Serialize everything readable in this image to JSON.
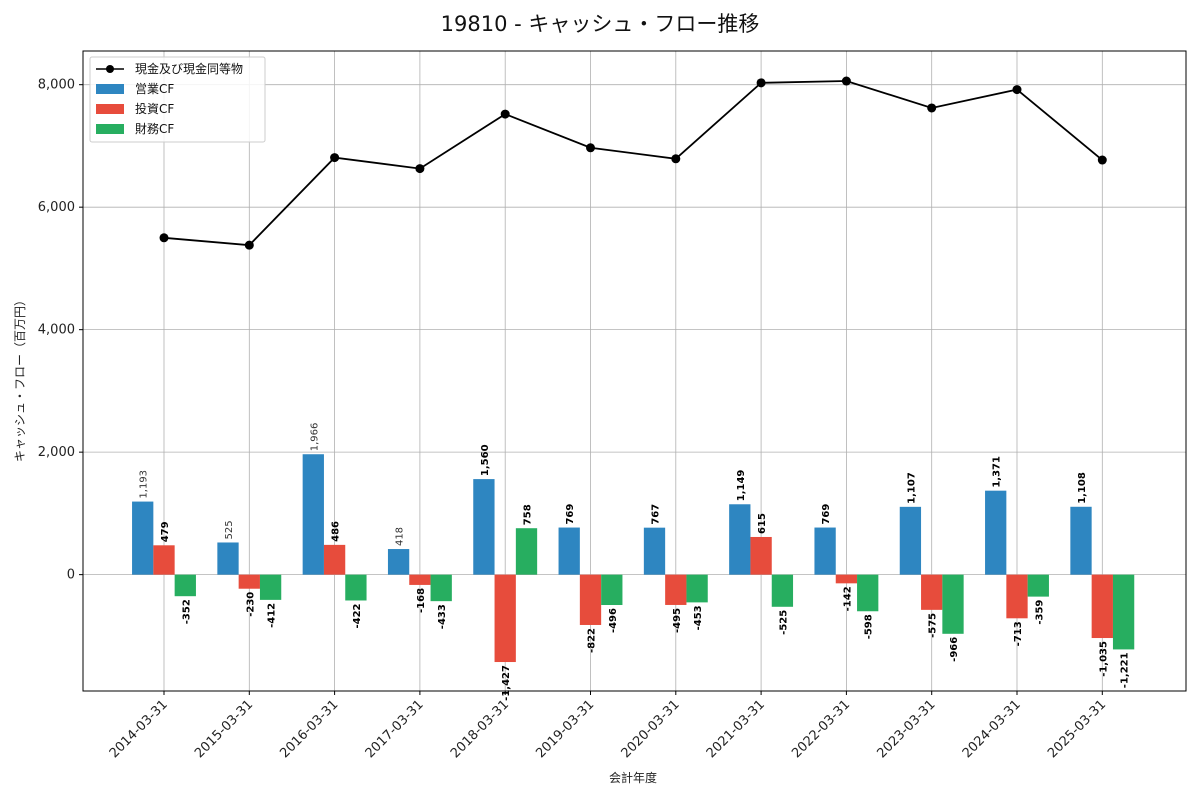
{
  "chart_data": {
    "type": "bar",
    "title": "19810 - キャッシュ・フロー推移",
    "xlabel": "会計年度",
    "ylabel": "キャッシュ・フロー（百万円）",
    "categories": [
      "2014-03-31",
      "2015-03-31",
      "2016-03-31",
      "2017-03-31",
      "2018-03-31",
      "2019-03-31",
      "2020-03-31",
      "2021-03-31",
      "2022-03-31",
      "2023-03-31",
      "2024-03-31",
      "2025-03-31"
    ],
    "series": [
      {
        "name": "営業CF",
        "kind": "bar",
        "color": "#2e86c1",
        "values": [
          1193,
          525,
          1966,
          418,
          1560,
          769,
          767,
          1149,
          769,
          1107,
          1371,
          1108
        ],
        "labels": [
          "1,193",
          "525",
          "1,966",
          "418",
          "1,560",
          "769",
          "767",
          "1,149",
          "769",
          "1,107",
          "1,371",
          "1,108"
        ]
      },
      {
        "name": "投資CF",
        "kind": "bar",
        "color": "#e74c3c",
        "values": [
          479,
          -230,
          486,
          -168,
          -1427,
          -822,
          -495,
          615,
          -142,
          -575,
          -713,
          -1035
        ],
        "labels": [
          "479",
          "-230",
          "486",
          "-168",
          "-1,427",
          "-822",
          "-495",
          "615",
          "-142",
          "-575",
          "-713",
          "-1,035"
        ]
      },
      {
        "name": "財務CF",
        "kind": "bar",
        "color": "#27ae60",
        "values": [
          -352,
          -412,
          -422,
          -433,
          758,
          -496,
          -453,
          -525,
          -598,
          -966,
          -359,
          -1221
        ],
        "labels": [
          "-352",
          "-412",
          "-422",
          "-433",
          "758",
          "-496",
          "-453",
          "-525",
          "-598",
          "-966",
          "-359",
          "-1,221"
        ]
      },
      {
        "name": "現金及び現金同等物",
        "kind": "line",
        "color": "#000000",
        "values": [
          5500,
          5380,
          6810,
          6630,
          7520,
          6970,
          6790,
          8030,
          8060,
          7620,
          7920,
          6770
        ]
      }
    ],
    "ylim": [
      -1900,
      8550
    ],
    "yticks": [
      0,
      2000,
      4000,
      6000,
      8000
    ],
    "ytick_labels": [
      "0",
      "2,000",
      "4,000",
      "6,000",
      "8,000"
    ],
    "grid": true,
    "legend_position": "top-left"
  }
}
